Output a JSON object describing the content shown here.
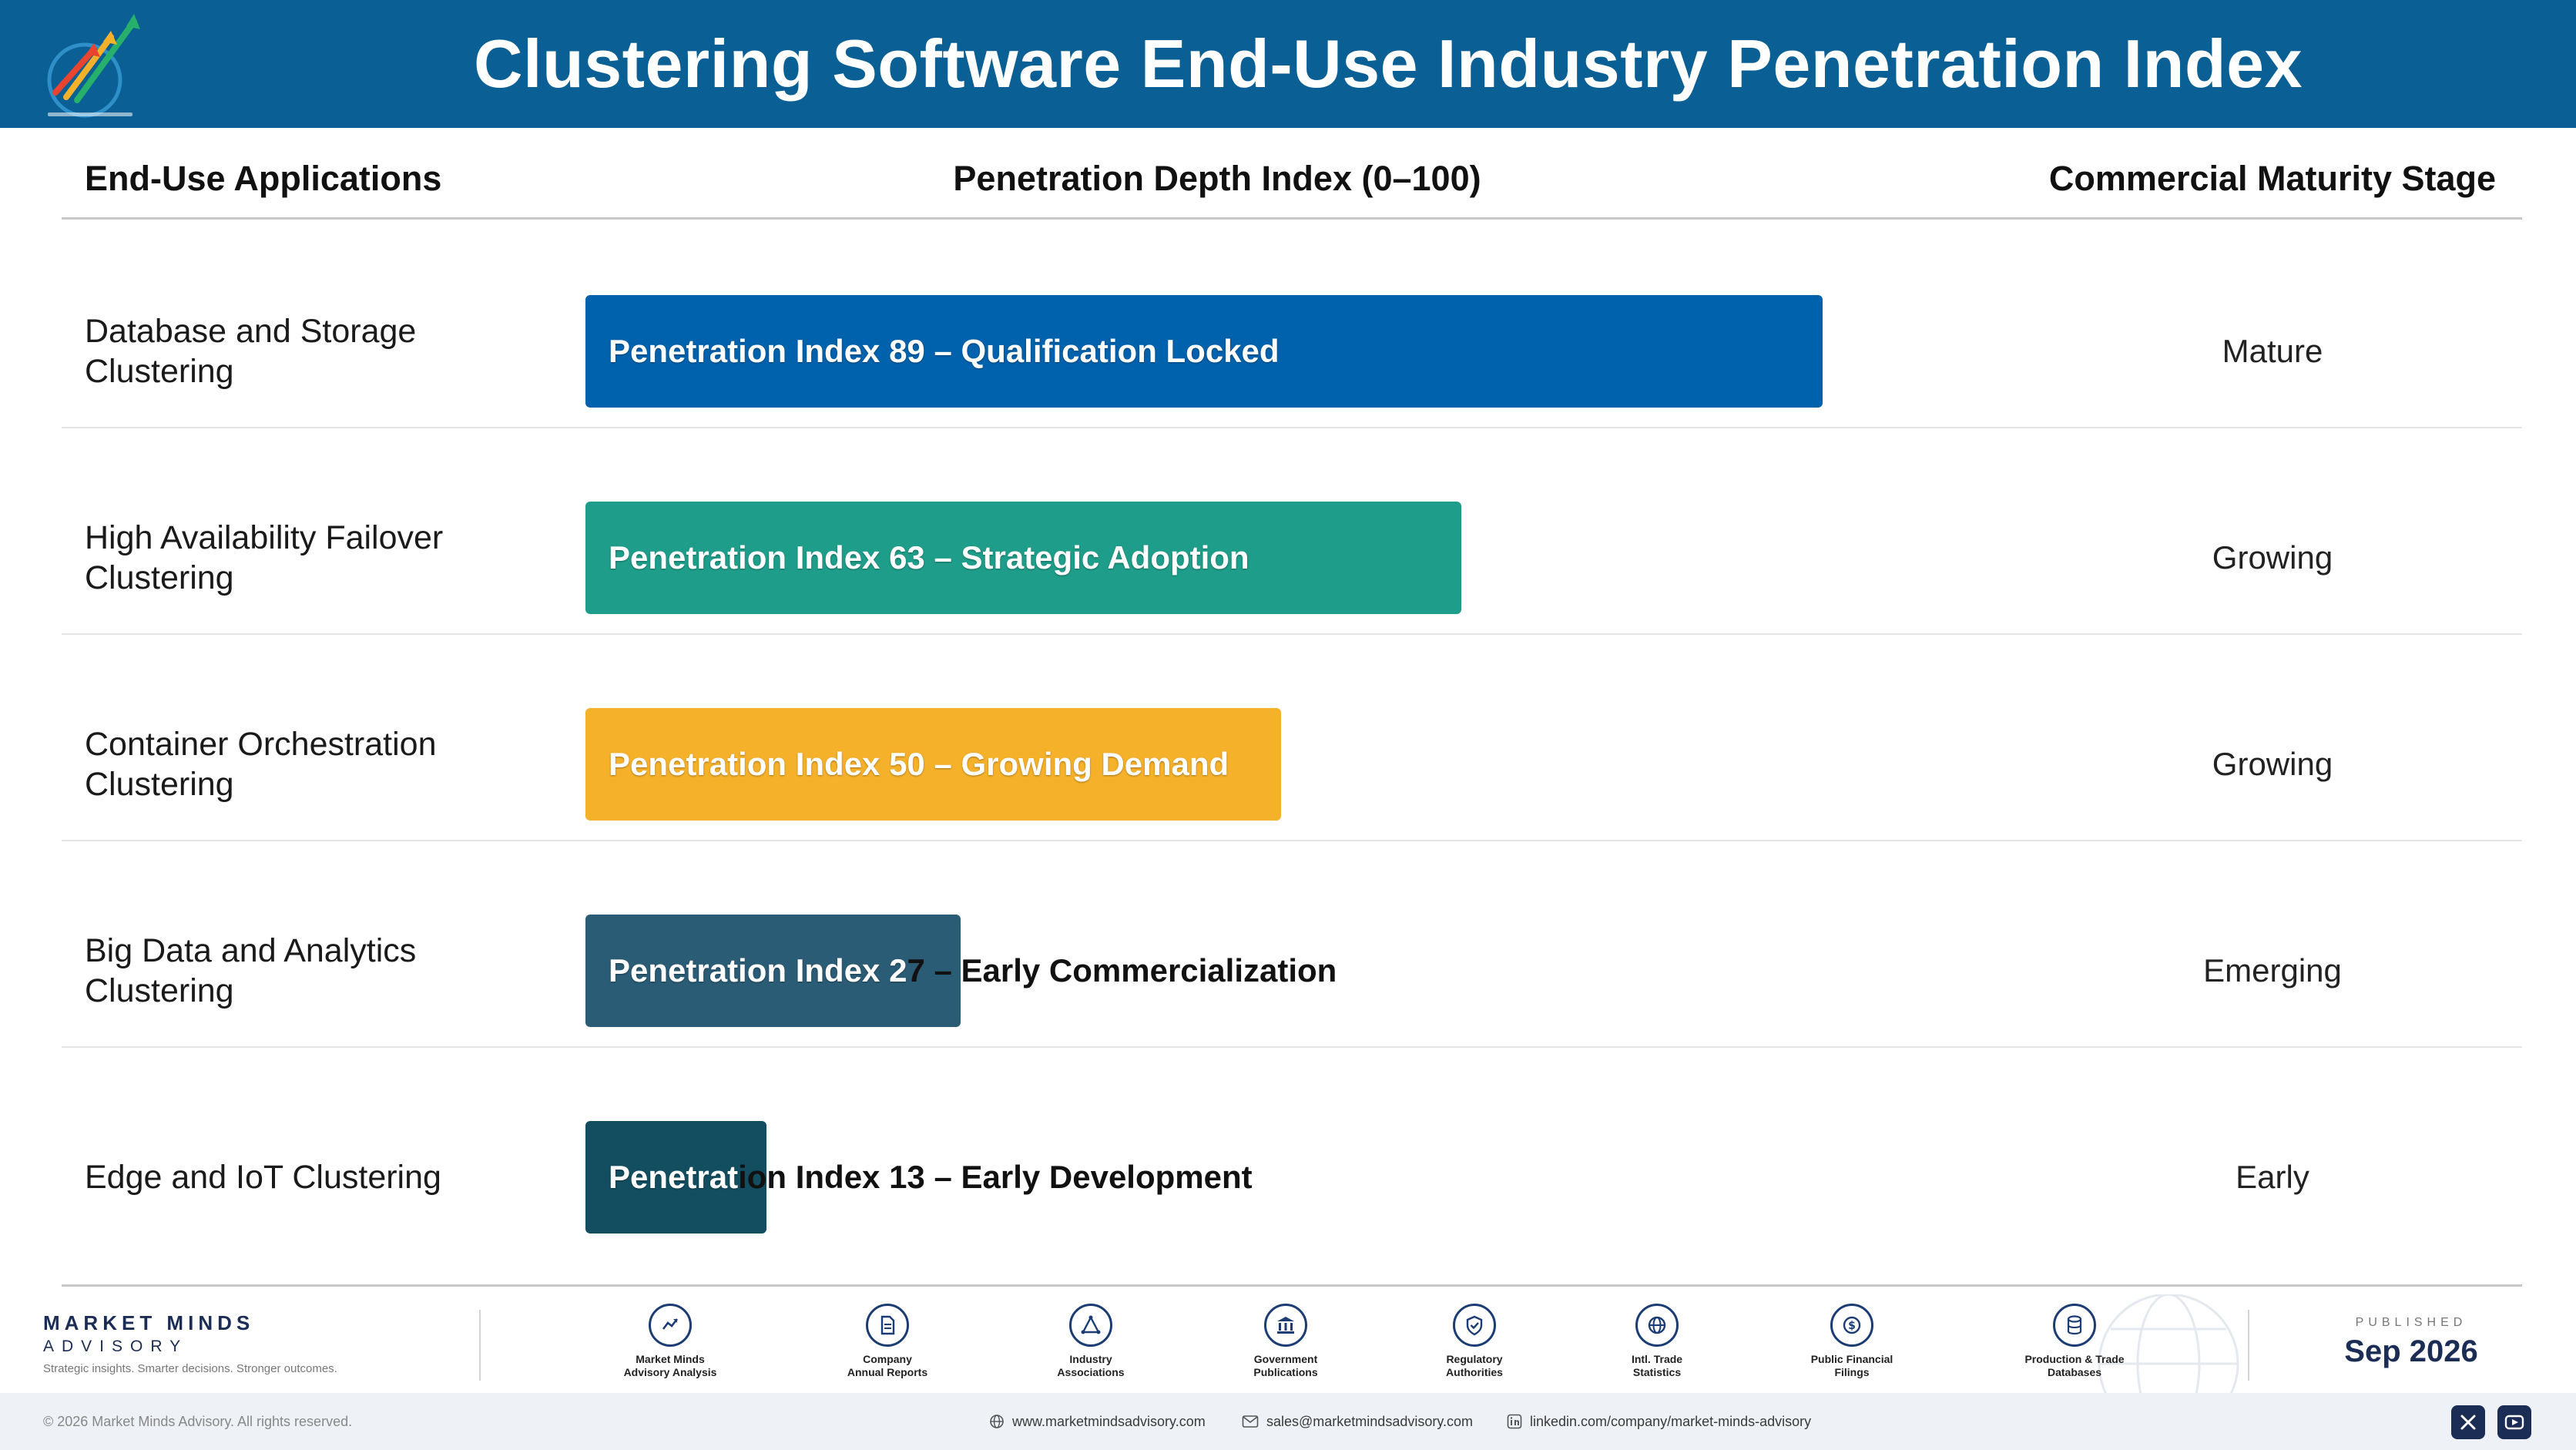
{
  "header": {
    "title": "Clustering Software End-Use Industry Penetration Index"
  },
  "columns": {
    "applications": "End-Use Applications",
    "index": "Penetration Depth Index (0–100)",
    "stage": "Commercial Maturity Stage"
  },
  "chart_data": {
    "type": "bar",
    "orientation": "horizontal",
    "title": "Clustering Software End-Use Industry Penetration Index",
    "xlabel": "Penetration Depth Index (0–100)",
    "ylabel": "End-Use Applications",
    "xlim": [
      0,
      100
    ],
    "grid": false,
    "categories": [
      "Database and Storage Clustering",
      "High Availability Failover Clustering",
      "Container Orchestration Clustering",
      "Big Data and Analytics Clustering",
      "Edge and IoT Clustering"
    ],
    "values": [
      89,
      63,
      50,
      27,
      13
    ],
    "bar_labels": [
      "Penetration Index 89 – Qualification Locked",
      "Penetration Index 63 – Strategic Adoption",
      "Penetration Index 50 – Growing Demand",
      "Penetration Index 27 – Early Commercialization",
      "Penetration Index 13 – Early Development"
    ],
    "stages": [
      "Mature",
      "Growing",
      "Growing",
      "Emerging",
      "Early"
    ],
    "colors": [
      "#0062ad",
      "#1e9e8a",
      "#f6b12b",
      "#2b5c76",
      "#124e60"
    ]
  },
  "footer": {
    "brand_name": "MARKET MINDS",
    "brand_sub": "ADVISORY",
    "brand_tagline": "Strategic insights. Smarter decisions. Stronger outcomes.",
    "sources": [
      {
        "icon": "trend-chart-icon",
        "line1": "Market Minds",
        "line2": "Advisory Analysis"
      },
      {
        "icon": "document-icon",
        "line1": "Company",
        "line2": "Annual Reports"
      },
      {
        "icon": "network-icon",
        "line1": "Industry",
        "line2": "Associations"
      },
      {
        "icon": "government-building-icon",
        "line1": "Government",
        "line2": "Publications"
      },
      {
        "icon": "shield-check-icon",
        "line1": "Regulatory",
        "line2": "Authorities"
      },
      {
        "icon": "globe-icon",
        "line1": "Intl. Trade",
        "line2": "Statistics"
      },
      {
        "icon": "coin-icon",
        "line1": "Public Financial",
        "line2": "Filings"
      },
      {
        "icon": "database-icon",
        "line1": "Production & Trade",
        "line2": "Databases"
      }
    ],
    "published_label": "PUBLISHED",
    "published_date": "Sep 2026",
    "copyright": "© 2026 Market Minds Advisory. All rights reserved.",
    "website": "www.marketmindsadvisory.com",
    "email": "sales@marketmindsadvisory.com",
    "linkedin": "linkedin.com/company/market-minds-advisory"
  }
}
